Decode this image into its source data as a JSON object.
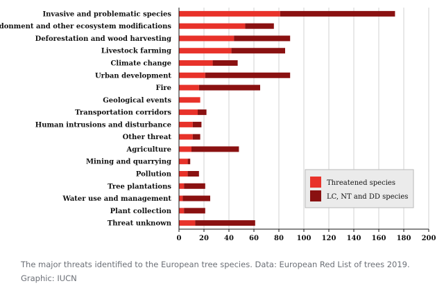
{
  "chart_data": {
    "type": "bar",
    "orientation": "horizontal",
    "stacked": true,
    "categories": [
      "Invasive and problematic species",
      "Land abandonment and other ecosystem modifications",
      "Deforestation and wood harvesting",
      "Livestock farming",
      "Climate change",
      "Urban development",
      "Fire",
      "Geological events",
      "Transportation corridors",
      "Human intrusions and disturbance",
      "Other threat",
      "Agriculture",
      "Mining and quarrying",
      "Pollution",
      "Tree plantations",
      "Water use and management",
      "Plant collection",
      "Threat unknown"
    ],
    "series": [
      {
        "name": "Threatened species",
        "color": "#e8322a",
        "values": [
          81,
          53,
          44,
          42,
          27,
          21,
          16,
          17,
          15,
          11,
          11,
          10,
          7,
          7,
          4,
          3,
          4,
          13
        ]
      },
      {
        "name": "LC, NT and DD species",
        "color": "#8a1111",
        "values": [
          92,
          23,
          45,
          43,
          20,
          68,
          49,
          0,
          7,
          7,
          6,
          38,
          2,
          9,
          17,
          22,
          17,
          48
        ]
      }
    ],
    "xticks": [
      0,
      20,
      40,
      60,
      80,
      100,
      120,
      140,
      160,
      180,
      200
    ],
    "xlim": [
      0,
      200
    ],
    "grid": true,
    "legend_position": "bottom-right"
  },
  "caption": "The major threats identified to the European tree species. Data: European Red List of trees 2019. Graphic: IUCN"
}
